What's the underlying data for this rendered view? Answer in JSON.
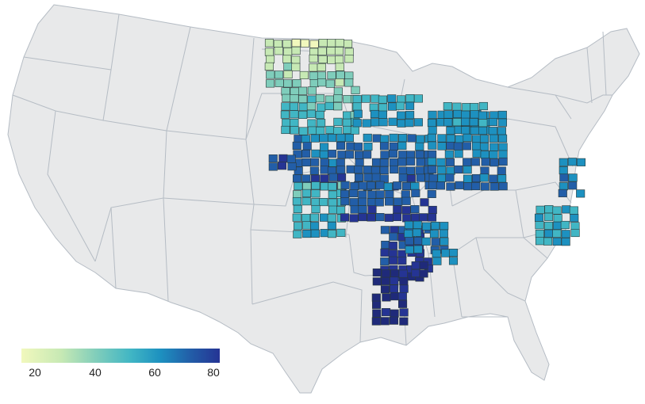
{
  "legend": {
    "tick_labels": [
      "20",
      "40",
      "60",
      "80"
    ],
    "tick_values": [
      20,
      40,
      60,
      80
    ],
    "min": 15,
    "max": 82,
    "colors": [
      "#f1f8bd",
      "#c7e9b4",
      "#7fcdbb",
      "#41b6c4",
      "#1d91c0",
      "#225ea8",
      "#253494",
      "#1f2a7a"
    ]
  },
  "map": {
    "land_color": "#e8e9ea",
    "border_color": "#b5bcc4",
    "county_stroke": "#2b3a3a"
  }
}
